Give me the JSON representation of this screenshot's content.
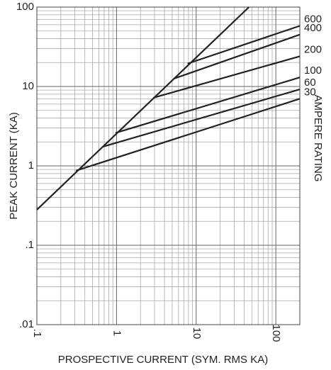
{
  "chart_data": {
    "type": "line",
    "x_label": "PROSPECTIVE CURRENT (SYM. RMS KA)",
    "y_label": "PEAK CURRENT (KA)",
    "annotation": "AMPERE RATING",
    "log_x": true,
    "log_y": true,
    "grid": true,
    "color": "#222222",
    "xlim": [
      0.1,
      200
    ],
    "ylim": [
      0.01,
      100
    ],
    "xticks": [
      {
        "value": 0.1,
        "label": ".1"
      },
      1,
      10,
      100
    ],
    "yticks": [
      {
        "value": 0.01,
        "label": ".01"
      },
      {
        "value": 0.1,
        "label": ".1"
      },
      1,
      10,
      100
    ],
    "xgrid": [
      0.2,
      0.3,
      0.4,
      0.5,
      0.6,
      0.7,
      0.8,
      0.9,
      2,
      3,
      4,
      5,
      6,
      7,
      8,
      9,
      20,
      30,
      40,
      50,
      60,
      70,
      80,
      90
    ],
    "ygrid": [
      0.02,
      0.03,
      0.04,
      0.05,
      0.06,
      0.07,
      0.08,
      0.09,
      0.2,
      0.3,
      0.4,
      0.5,
      0.6,
      0.7,
      0.8,
      0.9,
      2,
      3,
      4,
      5,
      6,
      7,
      8,
      9,
      20,
      30,
      40,
      50,
      60,
      70,
      80,
      90
    ],
    "threshold": {
      "x": [
        0.1,
        46
      ],
      "values": [
        0.28,
        100
      ]
    },
    "series": [
      {
        "name": "600",
        "x": [
          7.8,
          200
        ],
        "values": [
          19.4,
          58
        ]
      },
      {
        "name": "400",
        "x": [
          5.2,
          200
        ],
        "values": [
          12.5,
          45
        ]
      },
      {
        "name": "200",
        "x": [
          2.9,
          200
        ],
        "values": [
          7.2,
          24
        ]
      },
      {
        "name": "100",
        "x": [
          0.97,
          200
        ],
        "values": [
          2.6,
          13
        ]
      },
      {
        "name": "60",
        "x": [
          0.67,
          200
        ],
        "values": [
          1.74,
          9.2
        ]
      },
      {
        "name": "30",
        "x": [
          0.31,
          200
        ],
        "values": [
          0.87,
          7.0
        ]
      }
    ]
  }
}
